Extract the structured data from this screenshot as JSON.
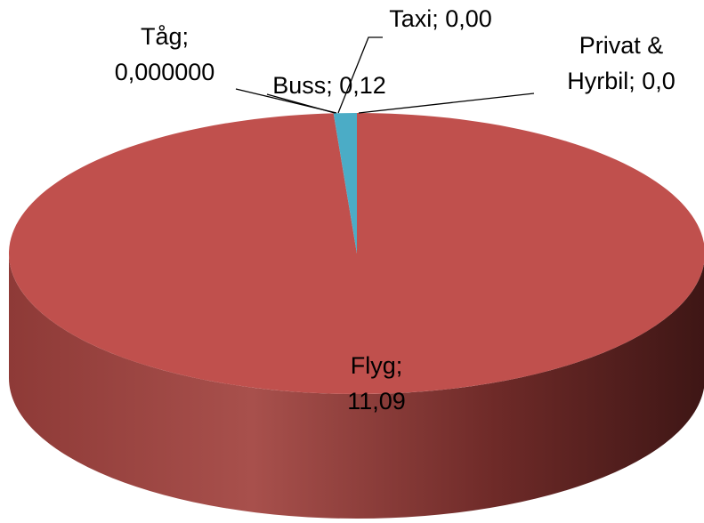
{
  "chart_data": {
    "type": "pie",
    "view": "3d",
    "values": [
      11.09,
      0.12,
      0,
      0,
      0
    ],
    "value_labels": [
      "Flyg;\n11,09",
      "Buss; 0,12",
      "Taxi; 0,00",
      "Tåg;\n0,000000",
      "Privat &\nHyrbil; 0,0"
    ],
    "colors": [
      "#c0504d",
      "#4bacc6",
      "#9bbb59",
      "#8064a2",
      "#f79646"
    ]
  }
}
